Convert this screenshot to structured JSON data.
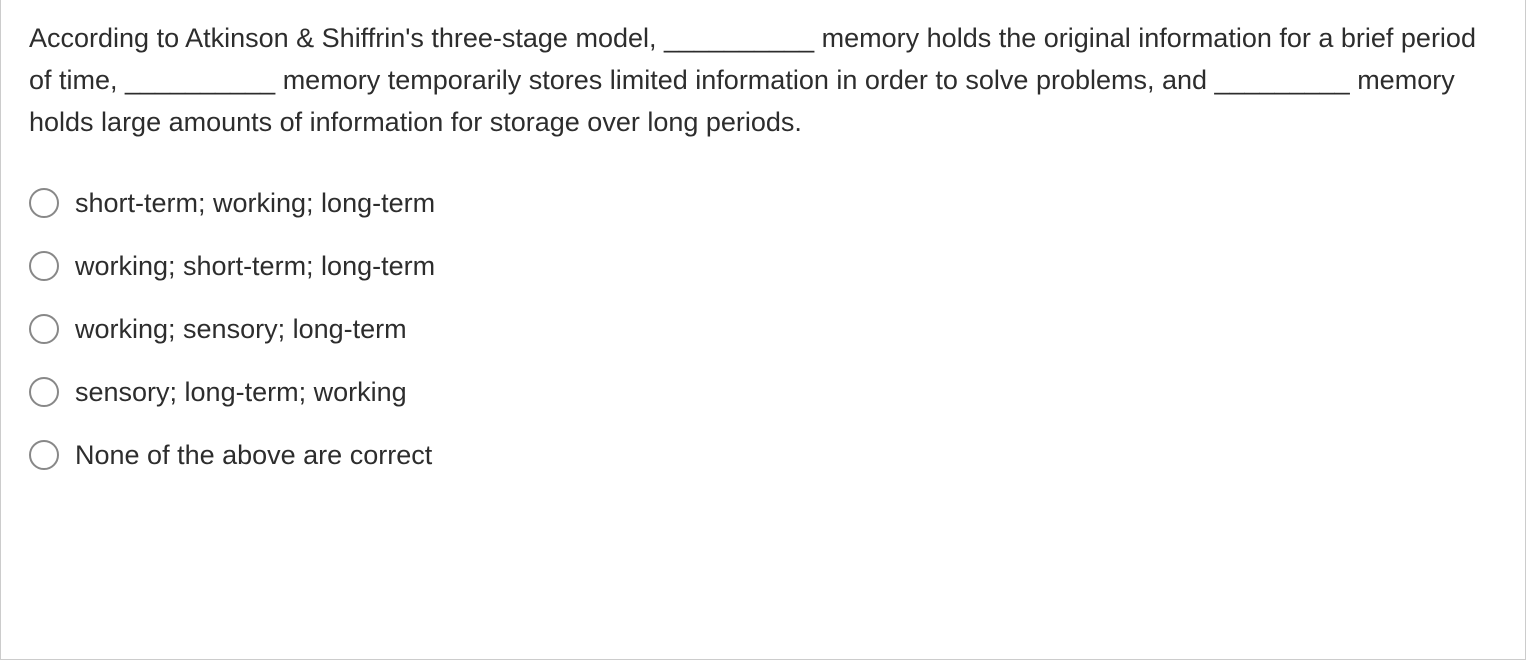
{
  "question": {
    "text": "According to Atkinson & Shiffrin's three-stage model, __________ memory holds the original information for a brief period of time, __________ memory temporarily stores limited information in order to solve problems, and _________ memory holds large amounts of information for storage over long periods.",
    "font_size": 27,
    "text_color": "#2d2d2d",
    "line_height": 1.55
  },
  "options": [
    {
      "label": "short-term; working; long-term"
    },
    {
      "label": "working; short-term; long-term"
    },
    {
      "label": "working; sensory; long-term"
    },
    {
      "label": "sensory; long-term; working"
    },
    {
      "label": "None of the above are correct"
    }
  ],
  "styling": {
    "container_border_color": "#cccccc",
    "background_color": "#ffffff",
    "radio_border_color": "#888888",
    "radio_size": 30,
    "option_font_size": 27,
    "option_gap": 28
  }
}
